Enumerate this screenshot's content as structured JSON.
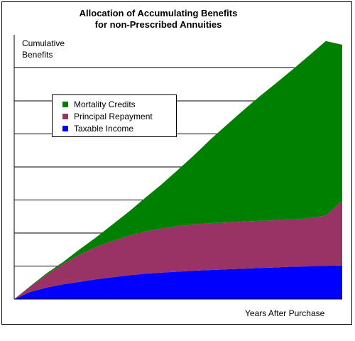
{
  "chart_data": {
    "type": "area",
    "stacked": true,
    "title": "Allocation of Accumulating Benefits",
    "subtitle": "for non-Prescribed Annuities",
    "ylabel_line1": "Cumulative",
    "ylabel_line2": "Benefits",
    "xlabel": "Years After Purchase",
    "x": [
      0,
      1,
      2,
      3,
      4,
      5,
      6,
      7,
      8,
      9,
      10,
      11,
      12,
      13,
      14,
      15,
      16,
      17,
      18,
      19,
      20
    ],
    "ylim": [
      0,
      8
    ],
    "grid": true,
    "legend_position": "upper-left",
    "series": [
      {
        "name": "Taxable Income",
        "color": "#0000ff",
        "values": [
          0,
          0.22,
          0.35,
          0.45,
          0.52,
          0.6,
          0.66,
          0.72,
          0.77,
          0.8,
          0.83,
          0.86,
          0.88,
          0.9,
          0.92,
          0.94,
          0.96,
          0.98,
          0.99,
          1.0,
          1.02
        ]
      },
      {
        "name": "Principal Repayment",
        "color": "#993366",
        "values": [
          0,
          0.16,
          0.4,
          0.62,
          0.83,
          0.98,
          1.1,
          1.2,
          1.28,
          1.34,
          1.38,
          1.4,
          1.42,
          1.42,
          1.43,
          1.43,
          1.43,
          1.43,
          1.46,
          1.53,
          1.96
        ]
      },
      {
        "name": "Mortality Credits",
        "color": "#008000",
        "values": [
          0,
          0.02,
          0.04,
          0.06,
          0.16,
          0.29,
          0.5,
          0.73,
          1.02,
          1.34,
          1.71,
          2.11,
          2.55,
          2.97,
          3.38,
          3.78,
          4.16,
          4.55,
          4.93,
          5.28,
          4.72
        ]
      }
    ]
  }
}
